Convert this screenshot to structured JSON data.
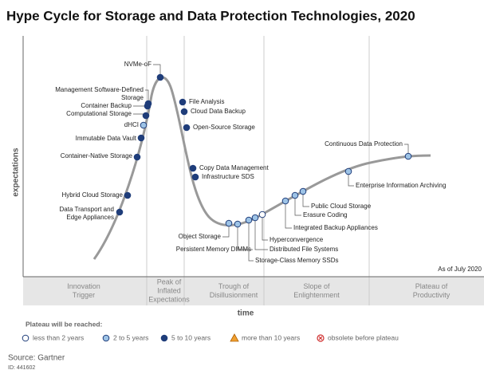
{
  "title": "Hype Cycle for Storage and Data Protection Technologies, 2020",
  "y_label": "expectations",
  "x_label": "time",
  "as_of": "As of July 2020",
  "phases": [
    [
      "Innovation",
      "Trigger"
    ],
    [
      "Peak of",
      "Inflated",
      "Expectations"
    ],
    [
      "Trough of",
      "Disillusionment"
    ],
    [
      "Slope of",
      "Enlightenment"
    ],
    [
      "Plateau of",
      "Productivity"
    ]
  ],
  "legend": {
    "title": "Plateau will be reached:",
    "items": [
      "less than 2 years",
      "2 to 5 years",
      "5 to 10 years",
      "more than 10 years",
      "obsolete before plateau"
    ]
  },
  "nodes": [
    {
      "label": [
        "NVMe-oF"
      ],
      "plateau": 2
    },
    {
      "label": [
        "Management Software-Defined",
        "Storage"
      ],
      "plateau": 2
    },
    {
      "label": [
        "Container Backup"
      ],
      "plateau": 2
    },
    {
      "label": [
        "Computational Storage"
      ],
      "plateau": 2
    },
    {
      "label": [
        "dHCI"
      ],
      "plateau": 1
    },
    {
      "label": [
        "Immutable Data Vault"
      ],
      "plateau": 2
    },
    {
      "label": [
        "Container-Native Storage"
      ],
      "plateau": 2
    },
    {
      "label": [
        "Hybrid Cloud Storage"
      ],
      "plateau": 2
    },
    {
      "label": [
        "Data Transport and",
        "Edge Appliances"
      ],
      "plateau": 2
    },
    {
      "label": [
        "File Analysis"
      ],
      "plateau": 2
    },
    {
      "label": [
        "Cloud Data Backup"
      ],
      "plateau": 2
    },
    {
      "label": [
        "Open-Source Storage"
      ],
      "plateau": 2
    },
    {
      "label": [
        "Copy Data Management"
      ],
      "plateau": 2
    },
    {
      "label": [
        "Infrastructure SDS"
      ],
      "plateau": 2
    },
    {
      "label": [
        "Object Storage"
      ],
      "plateau": 1
    },
    {
      "label": [
        "Persistent Memory DIMMs"
      ],
      "plateau": 1
    },
    {
      "label": [
        "Storage-Class Memory SSDs"
      ],
      "plateau": 1
    },
    {
      "label": [
        "Distributed File Systems"
      ],
      "plateau": 1
    },
    {
      "label": [
        "Hyperconvergence"
      ],
      "plateau": 0
    },
    {
      "label": [
        "Integrated Backup Appliances"
      ],
      "plateau": 1
    },
    {
      "label": [
        "Erasure Coding"
      ],
      "plateau": 1
    },
    {
      "label": [
        "Public Cloud Storage"
      ],
      "plateau": 1
    },
    {
      "label": [
        "Enterprise Information Archiving"
      ],
      "plateau": 1
    },
    {
      "label": [
        "Continuous Data Protection"
      ],
      "plateau": 1
    }
  ],
  "source": "Source: Gartner",
  "id": "ID: 441602"
}
